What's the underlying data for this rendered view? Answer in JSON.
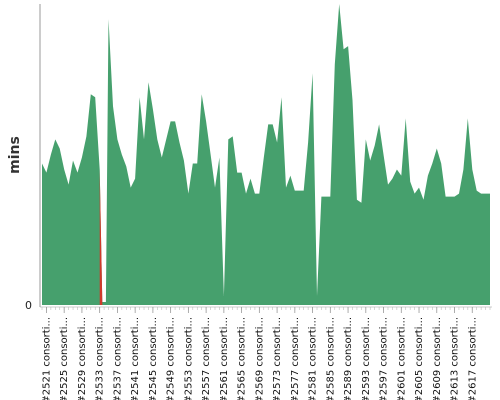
{
  "chart_data": {
    "type": "area",
    "title": "",
    "xlabel": "",
    "ylabel": "mins",
    "y_ticks": [
      "0"
    ],
    "ylim": [
      0,
      100
    ],
    "colors": {
      "area": "#46a06d",
      "highlight": "#d0392b"
    },
    "highlight_range": [
      2533,
      2534
    ],
    "x_start": 2520,
    "x_end": 2621,
    "tick_labels": [
      {
        "x": 2521,
        "label": "#2521 consorti..."
      },
      {
        "x": 2525,
        "label": "#2525 consorti..."
      },
      {
        "x": 2529,
        "label": "#2529 consorti..."
      },
      {
        "x": 2533,
        "label": "#2533 consorti..."
      },
      {
        "x": 2537,
        "label": "#2537 consorti..."
      },
      {
        "x": 2541,
        "label": "#2541 consorti..."
      },
      {
        "x": 2545,
        "label": "#2545 consorti..."
      },
      {
        "x": 2549,
        "label": "#2549 consorti..."
      },
      {
        "x": 2553,
        "label": "#2553 consorti..."
      },
      {
        "x": 2557,
        "label": "#2557 consorti..."
      },
      {
        "x": 2561,
        "label": "#2561 consorti..."
      },
      {
        "x": 2565,
        "label": "#2565 consorti..."
      },
      {
        "x": 2569,
        "label": "#2569 consorti..."
      },
      {
        "x": 2573,
        "label": "#2573 consorti..."
      },
      {
        "x": 2577,
        "label": "#2577 consorti..."
      },
      {
        "x": 2581,
        "label": "#2581 consorti..."
      },
      {
        "x": 2585,
        "label": "#2585 consorti..."
      },
      {
        "x": 2589,
        "label": "#2589 consorti..."
      },
      {
        "x": 2593,
        "label": "#2593 consorti..."
      },
      {
        "x": 2597,
        "label": "#2597 consorti..."
      },
      {
        "x": 2601,
        "label": "#2601 consorti..."
      },
      {
        "x": 2605,
        "label": "#2605 consorti..."
      },
      {
        "x": 2609,
        "label": "#2609 consorti..."
      },
      {
        "x": 2613,
        "label": "#2613 consorti..."
      },
      {
        "x": 2617,
        "label": "#2617 consorti..."
      }
    ],
    "series": [
      {
        "points": [
          [
            2520,
            47
          ],
          [
            2521,
            44
          ],
          [
            2522,
            50
          ],
          [
            2523,
            55
          ],
          [
            2524,
            52
          ],
          [
            2525,
            45
          ],
          [
            2526,
            40
          ],
          [
            2527,
            48
          ],
          [
            2528,
            44
          ],
          [
            2529,
            49
          ],
          [
            2530,
            56
          ],
          [
            2531,
            70
          ],
          [
            2532,
            69
          ],
          [
            2533,
            45
          ],
          [
            2533.6,
            1
          ],
          [
            2534.4,
            1
          ],
          [
            2535,
            95
          ],
          [
            2536,
            66
          ],
          [
            2537,
            55
          ],
          [
            2538,
            50
          ],
          [
            2539,
            46
          ],
          [
            2540,
            39
          ],
          [
            2541,
            42
          ],
          [
            2542,
            69
          ],
          [
            2543,
            55
          ],
          [
            2544,
            74
          ],
          [
            2545,
            65
          ],
          [
            2546,
            55
          ],
          [
            2547,
            49
          ],
          [
            2548,
            55
          ],
          [
            2549,
            61
          ],
          [
            2550,
            61
          ],
          [
            2551,
            54
          ],
          [
            2552,
            48
          ],
          [
            2553,
            37
          ],
          [
            2554,
            47
          ],
          [
            2555,
            47
          ],
          [
            2556,
            70
          ],
          [
            2557,
            61
          ],
          [
            2558,
            50
          ],
          [
            2559,
            39
          ],
          [
            2560,
            49
          ],
          [
            2561,
            3
          ],
          [
            2562,
            55
          ],
          [
            2563,
            56
          ],
          [
            2564,
            44
          ],
          [
            2565,
            44
          ],
          [
            2566,
            37
          ],
          [
            2567,
            42
          ],
          [
            2568,
            37
          ],
          [
            2569,
            37
          ],
          [
            2570,
            49
          ],
          [
            2571,
            60
          ],
          [
            2572,
            60
          ],
          [
            2573,
            54
          ],
          [
            2574,
            69
          ],
          [
            2575,
            39
          ],
          [
            2576,
            43
          ],
          [
            2577,
            38
          ],
          [
            2578,
            38
          ],
          [
            2579,
            38
          ],
          [
            2580,
            54
          ],
          [
            2581,
            77
          ],
          [
            2582,
            3
          ],
          [
            2583,
            36
          ],
          [
            2584,
            36
          ],
          [
            2585,
            36
          ],
          [
            2586,
            80
          ],
          [
            2587,
            100
          ],
          [
            2588,
            85
          ],
          [
            2589,
            86
          ],
          [
            2590,
            68
          ],
          [
            2591,
            35
          ],
          [
            2592,
            34
          ],
          [
            2593,
            55
          ],
          [
            2594,
            48
          ],
          [
            2595,
            53
          ],
          [
            2596,
            60
          ],
          [
            2597,
            50
          ],
          [
            2598,
            40
          ],
          [
            2599,
            42
          ],
          [
            2600,
            45
          ],
          [
            2601,
            43
          ],
          [
            2602,
            62
          ],
          [
            2603,
            41
          ],
          [
            2604,
            37
          ],
          [
            2605,
            39
          ],
          [
            2606,
            35
          ],
          [
            2607,
            43
          ],
          [
            2608,
            47
          ],
          [
            2609,
            52
          ],
          [
            2610,
            47
          ],
          [
            2611,
            36
          ],
          [
            2612,
            36
          ],
          [
            2613,
            36
          ],
          [
            2614,
            37
          ],
          [
            2615,
            45
          ],
          [
            2616,
            62
          ],
          [
            2617,
            45
          ],
          [
            2618,
            38
          ],
          [
            2619,
            37
          ],
          [
            2620,
            37
          ],
          [
            2621,
            37
          ]
        ]
      }
    ]
  }
}
